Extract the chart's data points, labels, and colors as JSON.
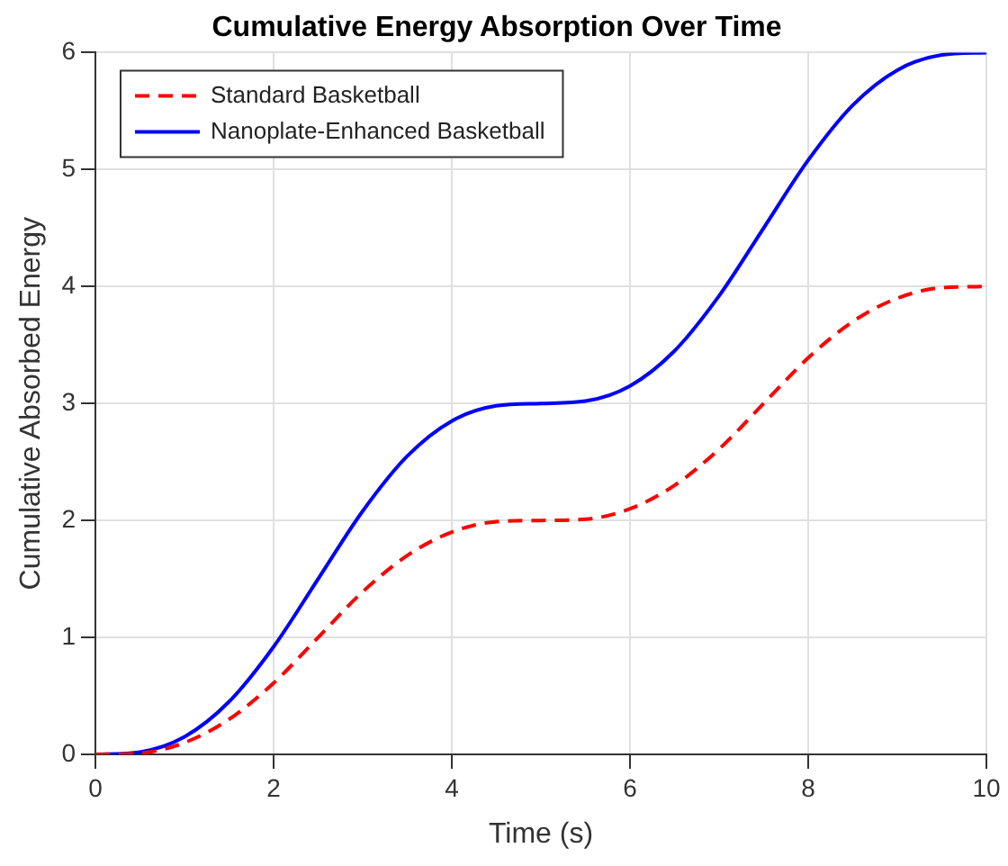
{
  "chart_data": {
    "type": "line",
    "title": "Cumulative Energy Absorption Over Time",
    "xlabel": "Time (s)",
    "ylabel": "Cumulative Absorbed Energy",
    "x": [
      0,
      0.5,
      1,
      1.5,
      2,
      2.5,
      3,
      3.5,
      4,
      4.5,
      5,
      5.5,
      6,
      6.5,
      7,
      7.5,
      8,
      8.5,
      9,
      9.5,
      10
    ],
    "series": [
      {
        "name": "Standard Basketball",
        "color": "#ff0000",
        "line_style": "dashed",
        "values": [
          0,
          0.01,
          0.1,
          0.3,
          0.61,
          1.0,
          1.39,
          1.7,
          1.9,
          1.99,
          2,
          2.01,
          2.1,
          2.3,
          2.61,
          3.0,
          3.39,
          3.7,
          3.9,
          3.99,
          4
        ]
      },
      {
        "name": "Nanoplate-Enhanced Basketball",
        "color": "#0000ff",
        "line_style": "solid",
        "values": [
          0,
          0.02,
          0.15,
          0.45,
          0.92,
          1.5,
          2.08,
          2.55,
          2.85,
          2.98,
          3,
          3.02,
          3.15,
          3.45,
          3.92,
          4.5,
          5.08,
          5.55,
          5.85,
          5.98,
          6
        ]
      }
    ],
    "xlim": [
      0,
      10
    ],
    "xticks": [
      0,
      2,
      4,
      6,
      8,
      10
    ],
    "ylim": [
      0,
      6
    ],
    "yticks": [
      0,
      1,
      2,
      3,
      4,
      5,
      6
    ],
    "grid": true,
    "legend": "top left",
    "marker": "none"
  }
}
